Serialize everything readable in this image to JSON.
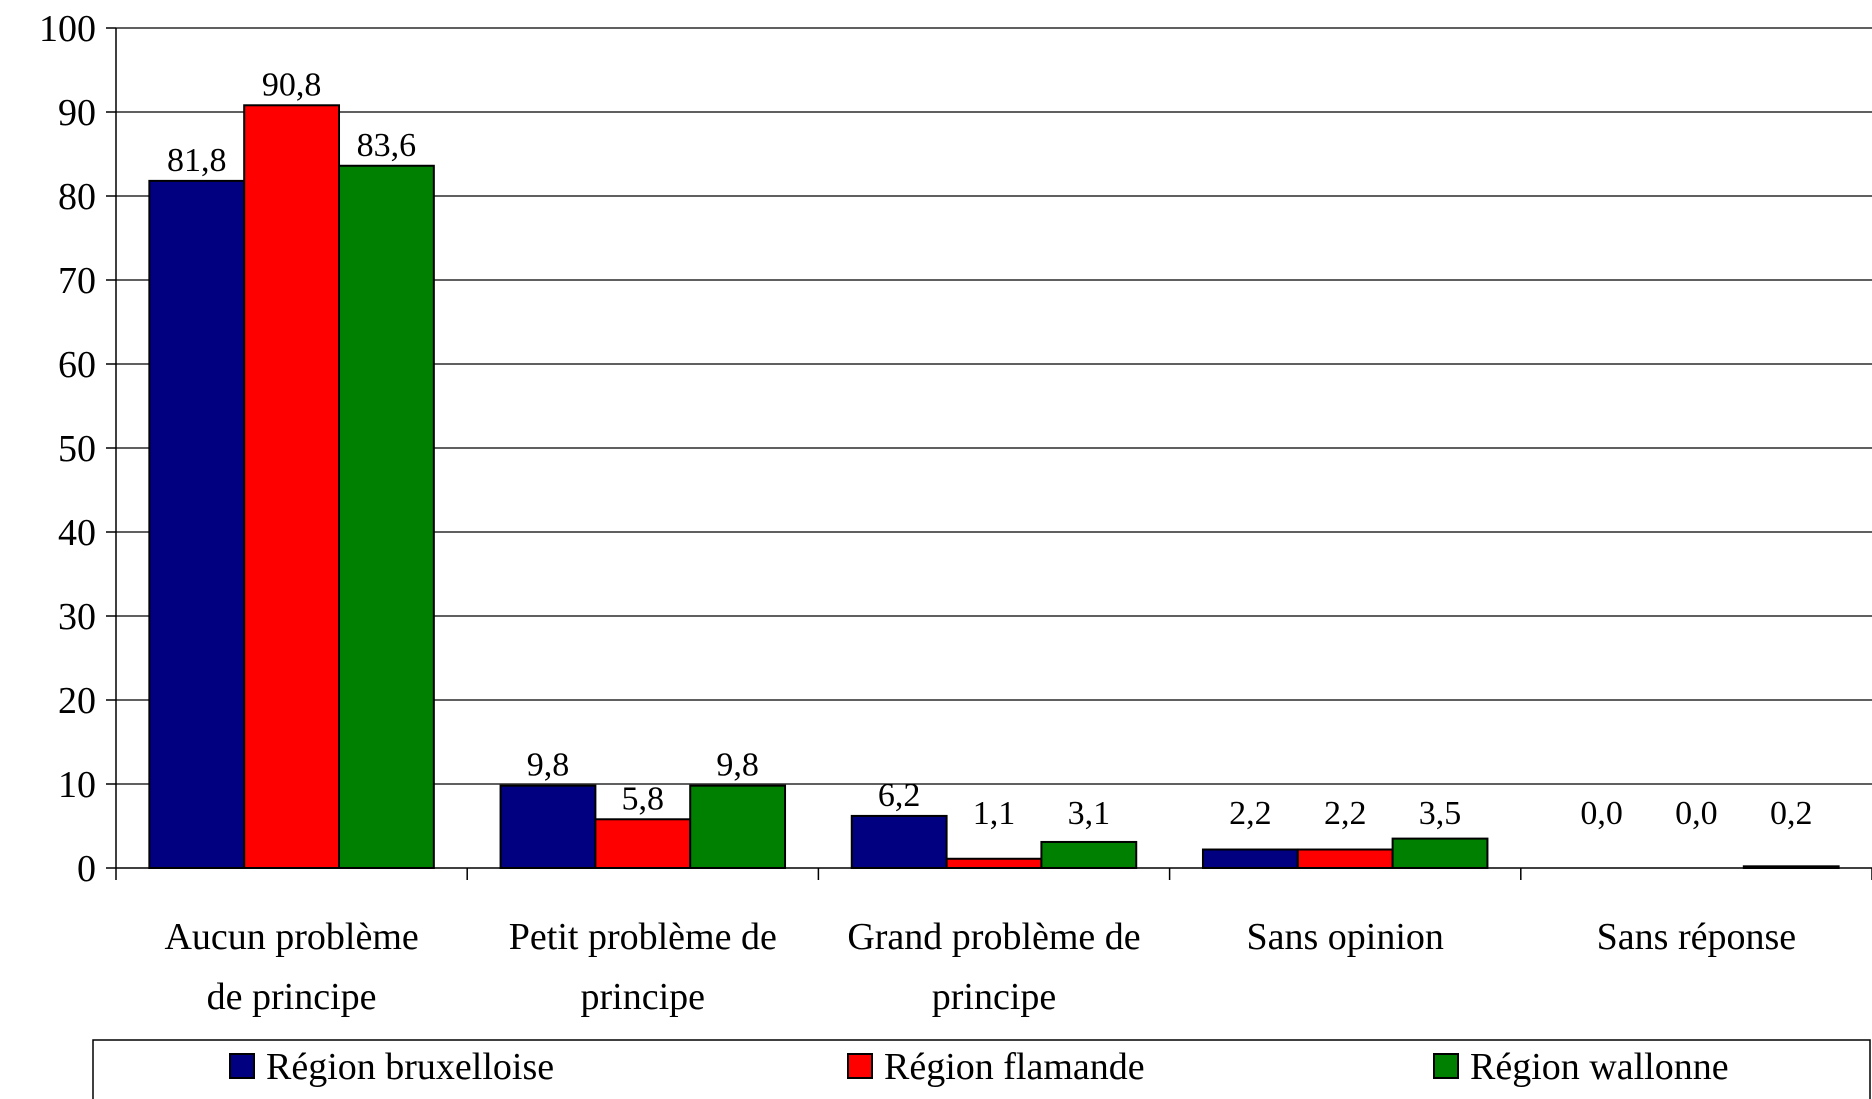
{
  "chart_data": {
    "type": "bar",
    "categories": [
      [
        "Aucun problème",
        "de principe"
      ],
      [
        "Petit problème de",
        "principe"
      ],
      [
        "Grand problème de",
        "principe"
      ],
      [
        "Sans opinion"
      ],
      [
        "Sans réponse"
      ]
    ],
    "series": [
      {
        "name": "Région bruxelloise",
        "color": "#000080",
        "values": [
          81.8,
          9.8,
          6.2,
          2.2,
          0.0
        ],
        "labels": [
          "81,8",
          "9,8",
          "6,2",
          "2,2",
          "0,0"
        ]
      },
      {
        "name": "Région flamande",
        "color": "#ff0000",
        "values": [
          90.8,
          5.8,
          1.1,
          2.2,
          0.0
        ],
        "labels": [
          "90,8",
          "5,8",
          "1,1",
          "2,2",
          "0,0"
        ]
      },
      {
        "name": "Région wallonne",
        "color": "#008000",
        "values": [
          83.6,
          9.8,
          3.1,
          3.5,
          0.2
        ],
        "labels": [
          "83,6",
          "9,8",
          "3,1",
          "3,5",
          "0,2"
        ]
      }
    ],
    "ylim": [
      0,
      100
    ],
    "yticks": [
      0,
      10,
      20,
      30,
      40,
      50,
      60,
      70,
      80,
      90,
      100
    ],
    "grid": true,
    "legend_position": "bottom"
  }
}
